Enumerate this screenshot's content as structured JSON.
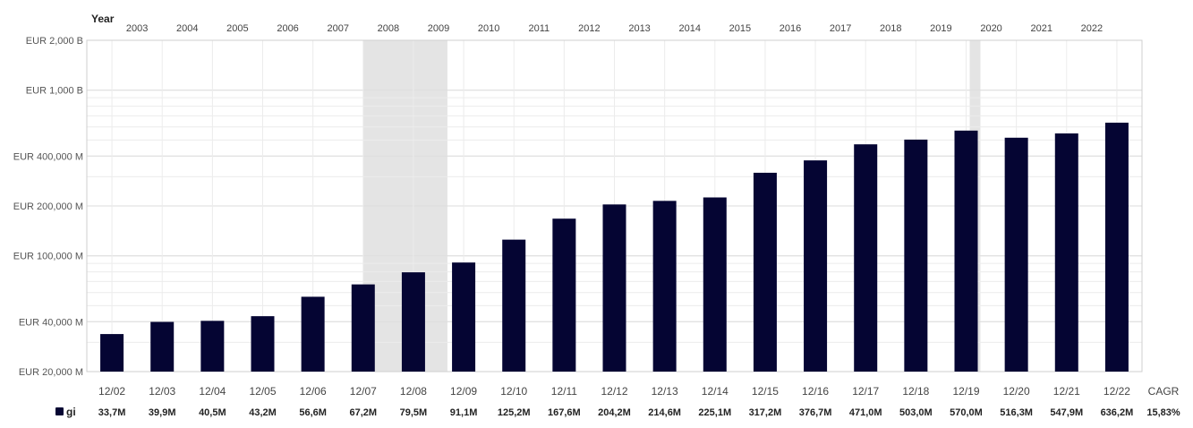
{
  "chart_data": {
    "type": "bar",
    "scale": "log",
    "top_axis_title": "Year",
    "top_axis_labels": [
      "2003",
      "2004",
      "2005",
      "2006",
      "2007",
      "2008",
      "2009",
      "2010",
      "2011",
      "2012",
      "2013",
      "2014",
      "2015",
      "2016",
      "2017",
      "2018",
      "2019",
      "2020",
      "2021",
      "2022"
    ],
    "categories": [
      "12/02",
      "12/03",
      "12/04",
      "12/05",
      "12/06",
      "12/07",
      "12/08",
      "12/09",
      "12/10",
      "12/11",
      "12/12",
      "12/13",
      "12/14",
      "12/15",
      "12/16",
      "12/17",
      "12/18",
      "12/19",
      "12/20",
      "12/21",
      "12/22"
    ],
    "series": [
      {
        "name": "gi",
        "color": "#050533",
        "values": [
          33700000,
          39900000,
          40500000,
          43200000,
          56600000,
          67200000,
          79500000,
          91100000,
          125200000,
          167600000,
          204200000,
          214600000,
          225100000,
          317200000,
          376700000,
          471000000,
          503000000,
          570000000,
          516300000,
          547900000,
          636200000
        ],
        "labels": [
          "33,7M",
          "39,9M",
          "40,5M",
          "43,2M",
          "56,6M",
          "67,2M",
          "79,5M",
          "91,1M",
          "125,2M",
          "167,6M",
          "204,2M",
          "214,6M",
          "225,1M",
          "317,2M",
          "376,7M",
          "471,0M",
          "503,0M",
          "570,0M",
          "516,3M",
          "547,9M",
          "636,2M"
        ],
        "cagr": "15,83%"
      }
    ],
    "cagr_label": "CAGR",
    "y_ticks": [
      {
        "value": 20000000,
        "label": "EUR 20,000 M"
      },
      {
        "value": 40000000,
        "label": "EUR 40,000 M"
      },
      {
        "value": 100000000,
        "label": "EUR 100,000 M"
      },
      {
        "value": 200000000,
        "label": "EUR 200,000 M"
      },
      {
        "value": 400000000,
        "label": "EUR 400,000 M"
      },
      {
        "value": 1000000000,
        "label": "EUR 1,000 B"
      },
      {
        "value": 2000000000,
        "label": "EUR 2,000 B"
      }
    ],
    "ylim": [
      20000000,
      2000000000
    ],
    "shaded_periods": [
      {
        "from": "12/07",
        "to": "12/08"
      },
      {
        "from": "12/19",
        "to": "12/19"
      }
    ],
    "shade_color": "#e4e4e4",
    "grid": true
  }
}
